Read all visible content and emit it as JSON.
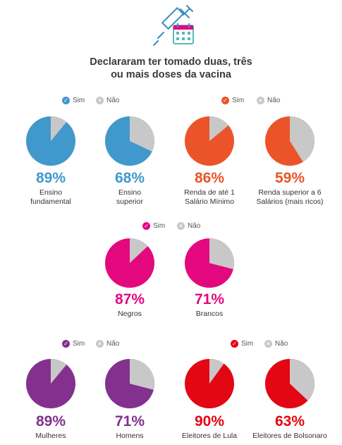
{
  "header": {
    "icon": "syringe-calendar-icon",
    "title_line1": "Declararam ter tomado duas, três",
    "title_line2": "ou mais doses da vacina"
  },
  "legend": {
    "yes": "Sim",
    "no": "Não",
    "no_color": "#c8c8c8"
  },
  "chart_data": [
    {
      "type": "pie",
      "color": "#4198cc",
      "values": {
        "Sim": 89,
        "Não": 11
      },
      "value_label": "89%",
      "label": "Ensino\nfundamental"
    },
    {
      "type": "pie",
      "color": "#4198cc",
      "values": {
        "Sim": 68,
        "Não": 32
      },
      "value_label": "68%",
      "label": "Ensino\nsuperior"
    },
    {
      "type": "pie",
      "color": "#eb5429",
      "values": {
        "Sim": 86,
        "Não": 14
      },
      "value_label": "86%",
      "label": "Renda de até 1\nSalário Mínimo"
    },
    {
      "type": "pie",
      "color": "#eb5429",
      "values": {
        "Sim": 59,
        "Não": 41
      },
      "value_label": "59%",
      "label": "Renda superior a 6\nSalários (mais ricos)"
    },
    {
      "type": "pie",
      "color": "#e4087f",
      "values": {
        "Sim": 87,
        "Não": 13
      },
      "value_label": "87%",
      "label": "Negros"
    },
    {
      "type": "pie",
      "color": "#e4087f",
      "values": {
        "Sim": 71,
        "Não": 29
      },
      "value_label": "71%",
      "label": "Brancos"
    },
    {
      "type": "pie",
      "color": "#83308f",
      "values": {
        "Sim": 89,
        "Não": 11
      },
      "value_label": "89%",
      "label": "Mulheres"
    },
    {
      "type": "pie",
      "color": "#83308f",
      "values": {
        "Sim": 71,
        "Não": 29
      },
      "value_label": "71%",
      "label": "Homens"
    },
    {
      "type": "pie",
      "color": "#e30613",
      "values": {
        "Sim": 90,
        "Não": 10
      },
      "value_label": "90%",
      "label": "Eleitores de Lula"
    },
    {
      "type": "pie",
      "color": "#e30613",
      "values": {
        "Sim": 63,
        "Não": 37
      },
      "value_label": "63%",
      "label": "Eleitores de Bolsonaro"
    }
  ]
}
